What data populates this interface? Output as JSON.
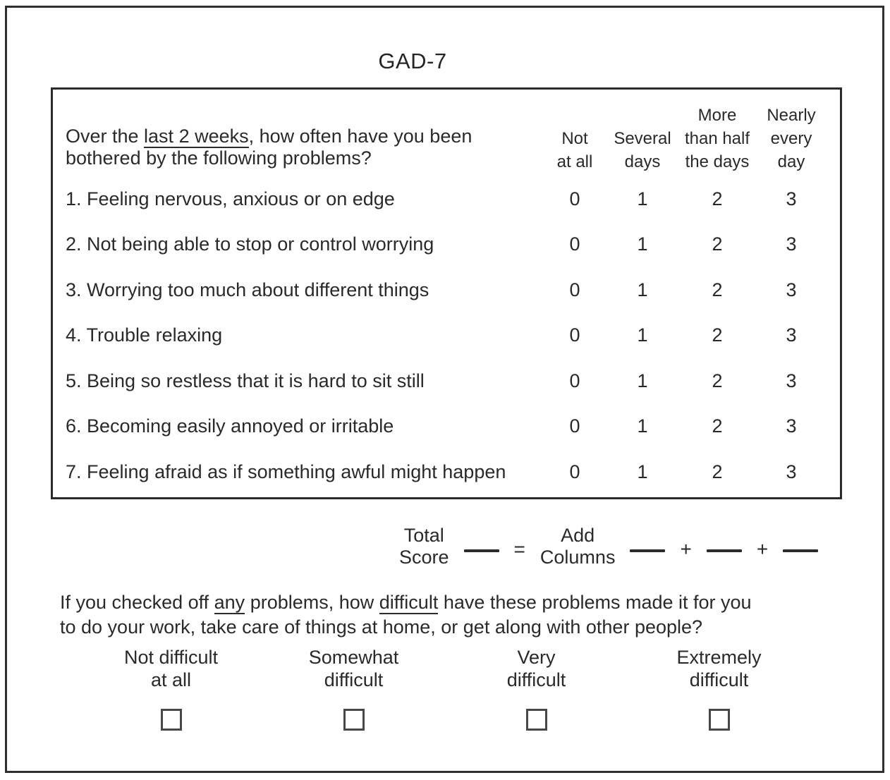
{
  "title": "GAD-7",
  "table": {
    "intro": {
      "line1": [
        {
          "t": "Over the "
        },
        {
          "t": "last 2 weeks",
          "u": true
        },
        {
          "t": ", how often have you been"
        }
      ],
      "line2": [
        {
          "t": "bothered by the following problems?"
        }
      ]
    },
    "columns": [
      {
        "lines": [
          "Not",
          "at all"
        ]
      },
      {
        "lines": [
          "Several",
          "days"
        ]
      },
      {
        "lines": [
          "More",
          "than half",
          "the days"
        ]
      },
      {
        "lines": [
          "Nearly",
          "every",
          "day"
        ]
      }
    ],
    "rows": [
      {
        "label": "1. Feeling nervous, anxious or on edge",
        "scores": [
          "0",
          "1",
          "2",
          "3"
        ]
      },
      {
        "label": "2. Not being able to stop or control worrying",
        "scores": [
          "0",
          "1",
          "2",
          "3"
        ]
      },
      {
        "label": "3. Worrying too much about different things",
        "scores": [
          "0",
          "1",
          "2",
          "3"
        ]
      },
      {
        "label": "4. Trouble relaxing",
        "scores": [
          "0",
          "1",
          "2",
          "3"
        ]
      },
      {
        "label": "5. Being so restless that it is hard to sit still",
        "scores": [
          "0",
          "1",
          "2",
          "3"
        ]
      },
      {
        "label": "6. Becoming easily annoyed or irritable",
        "scores": [
          "0",
          "1",
          "2",
          "3"
        ]
      },
      {
        "label": "7. Feeling afraid as if something awful might happen",
        "scores": [
          "0",
          "1",
          "2",
          "3"
        ]
      }
    ]
  },
  "score_row": {
    "total_lines": [
      "Total",
      "Score"
    ],
    "equals": "=",
    "add_lines": [
      "Add",
      "Columns"
    ],
    "plus": "+"
  },
  "difficulty": {
    "question_line1": [
      {
        "t": "If you checked off "
      },
      {
        "t": "any",
        "u": true
      },
      {
        "t": " problems, how "
      },
      {
        "t": "difficult",
        "u": true
      },
      {
        "t": " have these problems made it for you"
      }
    ],
    "question_line2": [
      {
        "t": "to do your work, take care of things at home, or get along with other people?"
      }
    ],
    "options": [
      {
        "lines": [
          "Not difficult",
          "at all"
        ]
      },
      {
        "lines": [
          "Somewhat",
          "difficult"
        ]
      },
      {
        "lines": [
          "Very",
          "difficult"
        ]
      },
      {
        "lines": [
          "Extremely",
          "difficult"
        ]
      }
    ]
  }
}
